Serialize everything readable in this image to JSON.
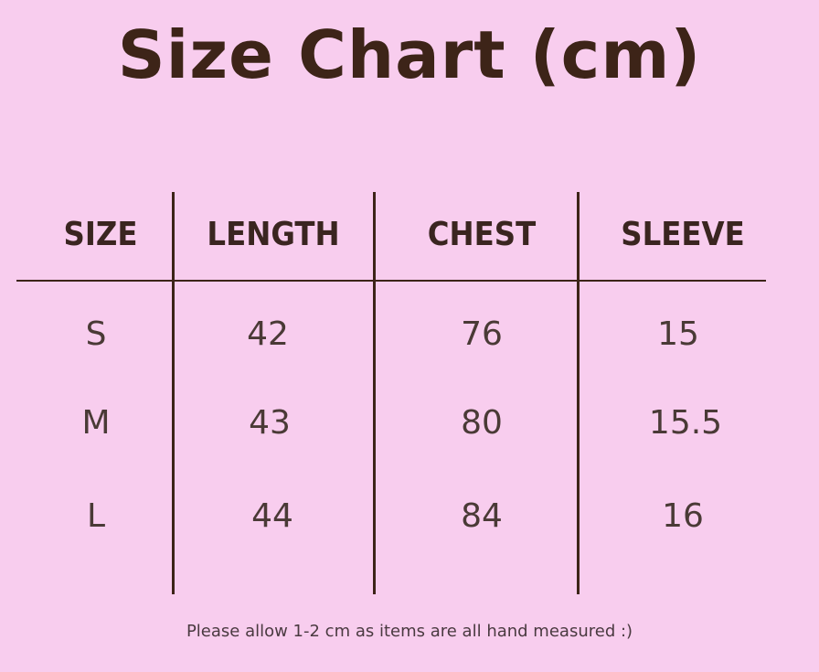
{
  "title": "Size Chart (cm)",
  "table": {
    "headers": [
      "SIZE",
      "LENGTH",
      "CHEST",
      "SLEEVE"
    ],
    "rows": [
      [
        "S",
        "42",
        "76",
        "15"
      ],
      [
        "M",
        "43",
        "80",
        "15.5"
      ],
      [
        "L",
        "44",
        "84",
        "16"
      ]
    ]
  },
  "note": "Please allow 1-2 cm as items are all hand measured :)",
  "colors": {
    "background": "#f8cdee",
    "text": "#3d2418"
  }
}
